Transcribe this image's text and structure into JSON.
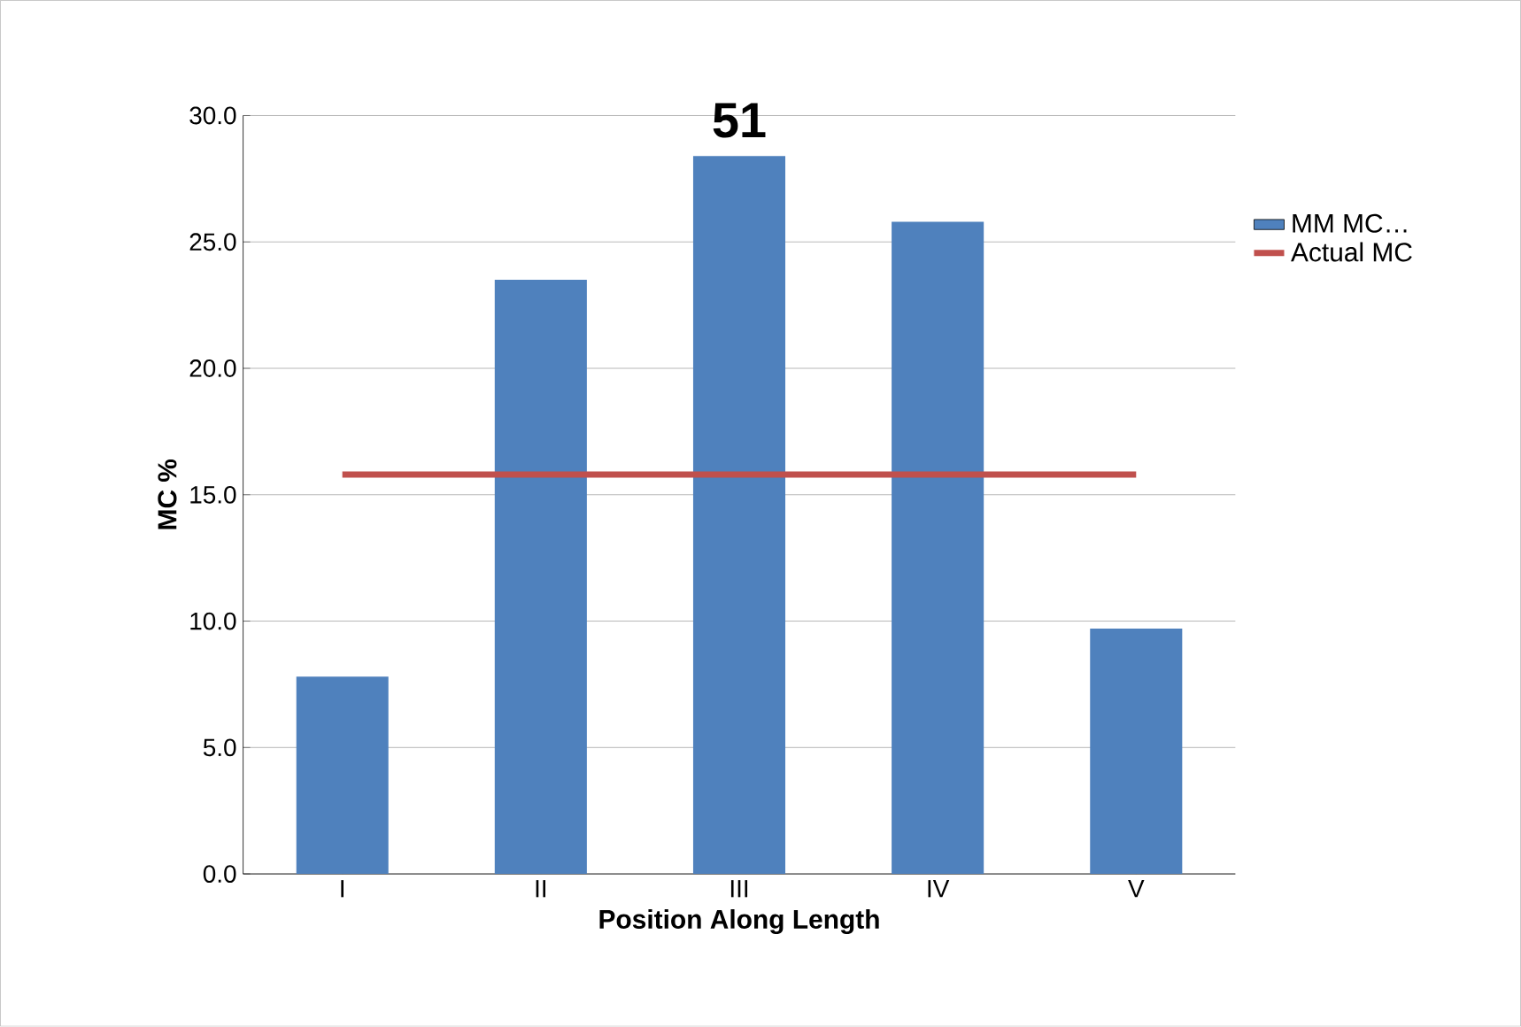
{
  "chart_data": {
    "type": "bar",
    "title": "51",
    "xlabel": "Position Along Length",
    "ylabel": "MC %",
    "categories": [
      "I",
      "II",
      "III",
      "IV",
      "V"
    ],
    "series": [
      {
        "name": "MM MC…",
        "color": "#4f81bd",
        "values": [
          7.8,
          23.5,
          28.4,
          25.8,
          9.7
        ]
      },
      {
        "name": "Actual MC",
        "type": "line",
        "color": "#c0504d",
        "values": [
          15.8,
          15.8,
          15.8,
          15.8,
          15.8
        ]
      }
    ],
    "ylim": [
      0,
      30
    ],
    "yticks": [
      {
        "value": 0,
        "label": "0.0"
      },
      {
        "value": 5,
        "label": "5.0"
      },
      {
        "value": 10,
        "label": "10.0"
      },
      {
        "value": 15,
        "label": "15.0"
      },
      {
        "value": 20,
        "label": "20.0"
      },
      {
        "value": 25,
        "label": "25.0"
      },
      {
        "value": 30,
        "label": "30.0"
      }
    ],
    "grid": "y",
    "legend": "right"
  }
}
